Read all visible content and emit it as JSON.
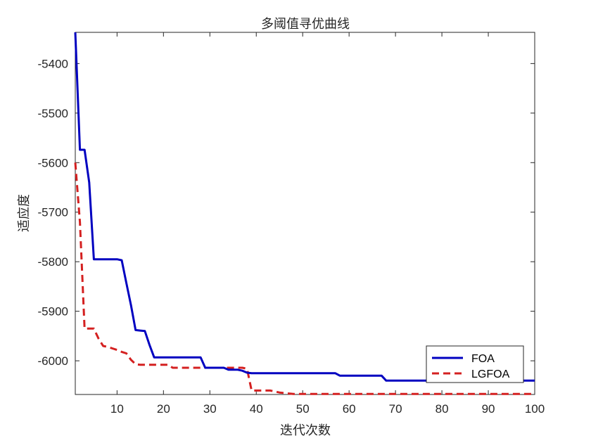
{
  "colors": {
    "foa": "#0000c0",
    "lgfoa": "#d42020",
    "axes": "#262626",
    "background": "#ffffff"
  },
  "chart_data": {
    "type": "line",
    "title": "多阈值寻优曲线",
    "xlabel": "迭代次数",
    "ylabel": "适应度",
    "xlim": [
      1,
      100
    ],
    "ylim": [
      -6068,
      -5337
    ],
    "grid": false,
    "legend_position": "bottom-right",
    "x_ticks": [
      10,
      20,
      30,
      40,
      50,
      60,
      70,
      80,
      90,
      100
    ],
    "y_ticks": [
      -5400,
      -5500,
      -5600,
      -5700,
      -5800,
      -5900,
      -6000
    ],
    "series": [
      {
        "name": "FOA",
        "style": "solid",
        "x": [
          1,
          2,
          3,
          4,
          5,
          6,
          7,
          8,
          9,
          10,
          11,
          12,
          13,
          14,
          15,
          16,
          17,
          18,
          19,
          20,
          21,
          22,
          23,
          24,
          25,
          26,
          27,
          28,
          29,
          30,
          31,
          32,
          33,
          34,
          35,
          36,
          37,
          38,
          39,
          40,
          45,
          50,
          55,
          57,
          58,
          60,
          65,
          67,
          68,
          70,
          75,
          80,
          85,
          90,
          95,
          100
        ],
        "y": [
          -5337,
          -5574,
          -5574,
          -5640,
          -5795,
          -5795,
          -5795,
          -5795,
          -5795,
          -5795,
          -5797,
          -5843,
          -5888,
          -5938,
          -5939,
          -5940,
          -5968,
          -5993,
          -5993,
          -5993,
          -5993,
          -5993,
          -5993,
          -5993,
          -5993,
          -5993,
          -5993,
          -5993,
          -6014,
          -6014,
          -6014,
          -6014,
          -6014,
          -6018,
          -6018,
          -6018,
          -6020,
          -6024,
          -6025,
          -6025,
          -6025,
          -6025,
          -6025,
          -6025,
          -6030,
          -6030,
          -6030,
          -6030,
          -6040,
          -6040,
          -6040,
          -6040,
          -6040,
          -6040,
          -6040,
          -6040
        ]
      },
      {
        "name": "LGFOA",
        "style": "dashed",
        "x": [
          1,
          2,
          3,
          4,
          5,
          6,
          7,
          8,
          9,
          10,
          11,
          12,
          13,
          14,
          15,
          16,
          17,
          18,
          19,
          20,
          21,
          22,
          23,
          24,
          25,
          26,
          27,
          28,
          29,
          30,
          31,
          32,
          33,
          34,
          35,
          36,
          37,
          38,
          39,
          40,
          41,
          42,
          43,
          44,
          45,
          46,
          47,
          48,
          49,
          50,
          55,
          60,
          70,
          80,
          90,
          100
        ],
        "y": [
          -5600,
          -5720,
          -5935,
          -5935,
          -5935,
          -5955,
          -5970,
          -5972,
          -5975,
          -5978,
          -5982,
          -5985,
          -5998,
          -6007,
          -6008,
          -6008,
          -6008,
          -6008,
          -6008,
          -6008,
          -6008,
          -6014,
          -6014,
          -6014,
          -6014,
          -6014,
          -6014,
          -6014,
          -6014,
          -6014,
          -6014,
          -6014,
          -6014,
          -6014,
          -6014,
          -6014,
          -6014,
          -6016,
          -6060,
          -6060,
          -6060,
          -6060,
          -6060,
          -6062,
          -6064,
          -6065,
          -6066,
          -6067,
          -6067,
          -6067,
          -6067,
          -6067,
          -6067,
          -6067,
          -6067,
          -6067
        ]
      }
    ]
  }
}
